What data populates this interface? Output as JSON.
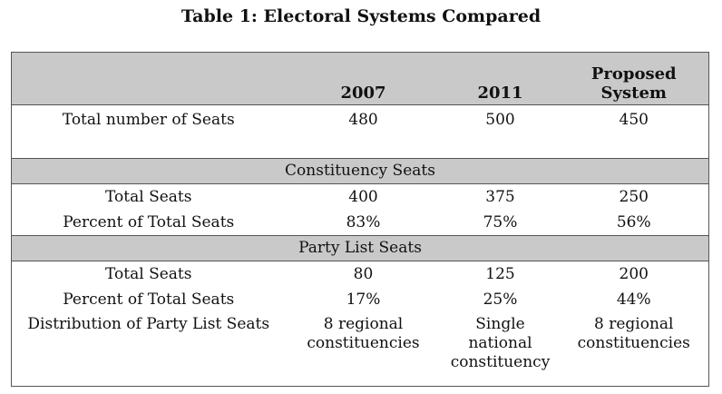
{
  "title": "Table 1: Electoral Systems Compared",
  "table": {
    "headers": [
      "",
      "2007",
      "2011",
      "Proposed System"
    ],
    "total_row": {
      "label": "Total number of Seats",
      "values": [
        "480",
        "500",
        "450"
      ]
    },
    "constituency": {
      "heading": "Constituency Seats",
      "rows": [
        {
          "label": "Total Seats",
          "values": [
            "400",
            "375",
            "250"
          ]
        },
        {
          "label": "Percent of Total Seats",
          "values": [
            "83%",
            "75%",
            "56%"
          ]
        }
      ]
    },
    "party_list": {
      "heading": "Party List Seats",
      "rows": [
        {
          "label": "Total Seats",
          "values": [
            "80",
            "125",
            "200"
          ]
        },
        {
          "label": "Percent of Total Seats",
          "values": [
            "17%",
            "25%",
            "44%"
          ]
        }
      ]
    },
    "distribution": {
      "label": "Distribution of Party List Seats",
      "values": [
        "8 regional constituencies",
        "Single national constituency",
        "8 regional constituencies"
      ]
    }
  }
}
